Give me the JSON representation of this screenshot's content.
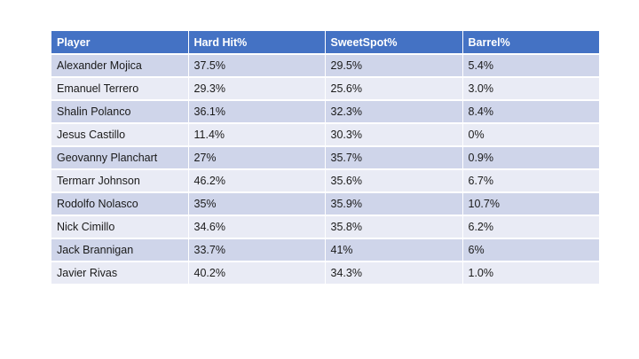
{
  "table": {
    "headers": [
      "Player",
      "Hard Hit%",
      "SweetSpot%",
      "Barrel%"
    ],
    "rows": [
      [
        "Alexander Mojica",
        "37.5%",
        "29.5%",
        "5.4%"
      ],
      [
        "Emanuel Terrero",
        "29.3%",
        "25.6%",
        "3.0%"
      ],
      [
        "Shalin Polanco",
        "36.1%",
        "32.3%",
        "8.4%"
      ],
      [
        "Jesus Castillo",
        "11.4%",
        "30.3%",
        "0%"
      ],
      [
        "Geovanny Planchart",
        "27%",
        "35.7%",
        "0.9%"
      ],
      [
        "Termarr Johnson",
        "46.2%",
        "35.6%",
        "6.7%"
      ],
      [
        "Rodolfo Nolasco",
        "35%",
        "35.9%",
        "10.7%"
      ],
      [
        "Nick Cimillo",
        "34.6%",
        "35.8%",
        "6.2%"
      ],
      [
        "Jack Brannigan",
        "33.7%",
        "41%",
        "6%"
      ],
      [
        "Javier Rivas",
        "40.2%",
        "34.3%",
        "1.0%"
      ]
    ]
  },
  "colors": {
    "header_bg": "#4472c4",
    "row_band_dark": "#cfd5ea",
    "row_band_light": "#e9ebf5"
  }
}
